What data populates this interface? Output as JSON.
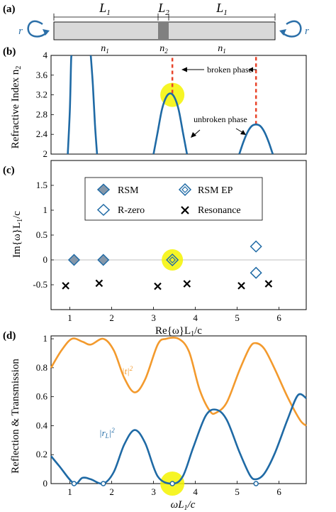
{
  "panels": {
    "a": {
      "label": "(a)",
      "segments": [
        "L",
        "L",
        "L"
      ],
      "segment_subs": [
        "1",
        "2",
        "1"
      ],
      "indices": [
        "n",
        "n",
        "n"
      ],
      "index_subs": [
        "1",
        "2",
        "1"
      ],
      "r_left": "r",
      "r_right": "r",
      "colors": {
        "slab": "#d9d9d9",
        "core": "#808080",
        "arrow": "#2b6fa8"
      }
    }
  },
  "chart_data": [
    {
      "panel": "(b)",
      "type": "line",
      "ylabel": "Refractive Index n",
      "ylabel_sub": "2",
      "ylim": [
        2,
        4
      ],
      "xlim": [
        0.55,
        6.65
      ],
      "yticks": [
        "2",
        "2.4",
        "2.8",
        "3.2",
        "3.6",
        "4"
      ],
      "ytick_values": [
        2,
        2.4,
        2.8,
        3.2,
        3.6,
        4
      ],
      "series": [
        {
          "points": [
            [
              0.95,
              2.0
            ],
            [
              1.0,
              2.9
            ],
            [
              1.03,
              3.9
            ],
            [
              1.045,
              4.0
            ]
          ]
        },
        {
          "points": [
            [
              1.5,
              4.0
            ],
            [
              1.55,
              3.4
            ],
            [
              1.6,
              2.6
            ],
            [
              1.65,
              2.0
            ]
          ]
        },
        {
          "points": [
            [
              3.0,
              2.0
            ],
            [
              3.1,
              2.45
            ],
            [
              3.2,
              2.9
            ],
            [
              3.3,
              3.15
            ],
            [
              3.4,
              3.23
            ],
            [
              3.5,
              3.15
            ],
            [
              3.6,
              2.9
            ],
            [
              3.7,
              2.45
            ],
            [
              3.8,
              2.0
            ]
          ]
        },
        {
          "points": [
            [
              5.05,
              2.0
            ],
            [
              5.15,
              2.25
            ],
            [
              5.25,
              2.45
            ],
            [
              5.35,
              2.57
            ],
            [
              5.45,
              2.6
            ],
            [
              5.55,
              2.57
            ],
            [
              5.65,
              2.45
            ],
            [
              5.75,
              2.25
            ],
            [
              5.85,
              2.0
            ]
          ]
        }
      ],
      "dashed": [
        {
          "x": 3.45,
          "y0": 3.23,
          "y1": 4.0
        },
        {
          "x": 5.45,
          "y0": 2.6,
          "y1": 4.0
        }
      ],
      "highlight": {
        "x": 3.45,
        "y": 3.2
      },
      "annotations": {
        "broken": "broken phase",
        "unbroken": "unbroken phase"
      },
      "colors": {
        "line": "#1f6aa5",
        "dash": "#e8442a",
        "highlight": "#f4f300"
      }
    },
    {
      "panel": "(c)",
      "type": "scatter",
      "xlabel": "Re{ω}L/c",
      "ylabel": "Im{ω}L/c",
      "label_sub": "1",
      "xlim": [
        0.55,
        6.65
      ],
      "ylim": [
        -1.0,
        2.0
      ],
      "xticks": [
        "1",
        "2",
        "3",
        "4",
        "5",
        "6"
      ],
      "xtick_values": [
        1,
        2,
        3,
        4,
        5,
        6
      ],
      "yticks": [
        "-0.5",
        "0",
        "0.5",
        "1",
        "1.5"
      ],
      "ytick_values": [
        -0.5,
        0,
        0.5,
        1,
        1.5
      ],
      "zero_line": 0,
      "series": [
        {
          "name": "RSM",
          "marker": "filled-diamond",
          "points": [
            [
              1.1,
              0
            ],
            [
              1.8,
              0
            ]
          ]
        },
        {
          "name": "RSM EP",
          "marker": "double-diamond",
          "points": [
            [
              3.45,
              0
            ]
          ]
        },
        {
          "name": "R-zero",
          "marker": "open-diamond",
          "points": [
            [
              5.45,
              0.27
            ],
            [
              5.45,
              -0.26
            ]
          ]
        },
        {
          "name": "Resonance",
          "marker": "cross",
          "points": [
            [
              0.9,
              -0.52
            ],
            [
              1.7,
              -0.47
            ],
            [
              3.1,
              -0.53
            ],
            [
              3.8,
              -0.48
            ],
            [
              5.1,
              -0.52
            ],
            [
              5.75,
              -0.48
            ]
          ]
        }
      ],
      "highlight": {
        "x": 3.45,
        "y": 0
      },
      "legend": {
        "placement": "top-center",
        "columns": 2
      },
      "colors": {
        "marker": "#1f6aa5",
        "fill": "#8597a9",
        "cross": "#000000",
        "highlight": "#f4f300",
        "zero": "#bfbfbf"
      }
    },
    {
      "panel": "(d)",
      "type": "line",
      "xlabel": "ωL/c",
      "ylabel": "Reflection & Transmission",
      "label_sub": "1",
      "xlim": [
        0.55,
        6.65
      ],
      "ylim": [
        0,
        1.02
      ],
      "xticks": [
        "1",
        "2",
        "3",
        "4",
        "5",
        "6"
      ],
      "xtick_values": [
        1,
        2,
        3,
        4,
        5,
        6
      ],
      "yticks": [
        "0",
        "0.2",
        "0.4",
        "0.6",
        "0.8",
        "1"
      ],
      "ytick_values": [
        0,
        0.2,
        0.4,
        0.6,
        0.8,
        1
      ],
      "series": [
        {
          "name": "|t|²",
          "color": "#f39a2d",
          "points": [
            [
              0.55,
              0.8
            ],
            [
              0.8,
              0.92
            ],
            [
              1.05,
              1.0
            ],
            [
              1.3,
              0.98
            ],
            [
              1.5,
              0.96
            ],
            [
              1.8,
              1.0
            ],
            [
              2.05,
              0.92
            ],
            [
              2.3,
              0.73
            ],
            [
              2.55,
              0.63
            ],
            [
              2.8,
              0.72
            ],
            [
              3.1,
              0.96
            ],
            [
              3.3,
              1.0
            ],
            [
              3.6,
              1.0
            ],
            [
              3.85,
              0.91
            ],
            [
              4.1,
              0.65
            ],
            [
              4.35,
              0.5
            ],
            [
              4.5,
              0.49
            ],
            [
              4.75,
              0.56
            ],
            [
              5.05,
              0.78
            ],
            [
              5.3,
              0.94
            ],
            [
              5.45,
              0.97
            ],
            [
              5.65,
              0.93
            ],
            [
              5.9,
              0.79
            ],
            [
              6.2,
              0.6
            ],
            [
              6.5,
              0.44
            ],
            [
              6.65,
              0.4
            ]
          ]
        },
        {
          "name": "|r_L|²",
          "color": "#1f6aa5",
          "points": [
            [
              0.55,
              0.19
            ],
            [
              0.75,
              0.12
            ],
            [
              1.1,
              0.0
            ],
            [
              1.3,
              0.04
            ],
            [
              1.5,
              0.03
            ],
            [
              1.8,
              0.0
            ],
            [
              2.05,
              0.08
            ],
            [
              2.3,
              0.27
            ],
            [
              2.55,
              0.37
            ],
            [
              2.8,
              0.28
            ],
            [
              3.1,
              0.05
            ],
            [
              3.45,
              0.0
            ],
            [
              3.7,
              0.05
            ],
            [
              3.95,
              0.25
            ],
            [
              4.25,
              0.47
            ],
            [
              4.5,
              0.51
            ],
            [
              4.75,
              0.44
            ],
            [
              5.05,
              0.22
            ],
            [
              5.3,
              0.06
            ],
            [
              5.45,
              0.03
            ],
            [
              5.65,
              0.07
            ],
            [
              5.9,
              0.21
            ],
            [
              6.2,
              0.44
            ],
            [
              6.45,
              0.61
            ],
            [
              6.65,
              0.59
            ]
          ]
        }
      ],
      "zero_markers": [
        1.1,
        1.8,
        3.45,
        5.45
      ],
      "highlight": {
        "x": 3.45,
        "y": 0
      },
      "series_labels": {
        "t": "|t|",
        "t_sup": "2",
        "r": "|r",
        "r_sub": "L",
        "r_sup": "2"
      }
    }
  ]
}
